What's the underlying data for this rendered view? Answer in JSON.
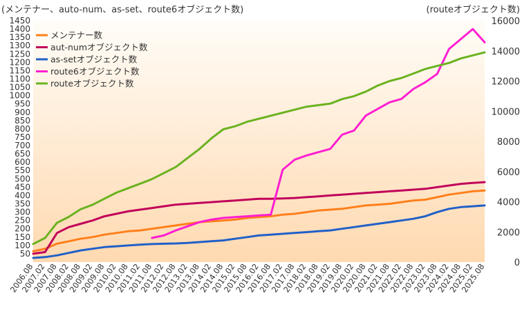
{
  "chart_data": {
    "type": "line",
    "ylabel_left": "(メンテナー、auto-num、as-set、route6オブジェクト数)",
    "ylabel_right": "(routeオブジェクト数)",
    "left_axis": {
      "ylim": [
        0,
        1450
      ],
      "ticks": [
        50,
        100,
        150,
        200,
        250,
        300,
        350,
        400,
        450,
        500,
        550,
        600,
        650,
        700,
        750,
        800,
        850,
        900,
        950,
        1000,
        1050,
        1100,
        1150,
        1200,
        1250,
        1300,
        1350,
        1400,
        1450
      ]
    },
    "right_axis": {
      "ylim": [
        0,
        16000
      ],
      "ticks": [
        0,
        2000,
        4000,
        6000,
        8000,
        10000,
        12000,
        14000,
        16000
      ]
    },
    "x_labels": [
      "2006.08",
      "2007.02",
      "2007.08",
      "2008.02",
      "2008.08",
      "2009.02",
      "2009.08",
      "2010.02",
      "2010.08",
      "2011.02",
      "2011.08",
      "2012.02",
      "2012.08",
      "2013.02",
      "2013.08",
      "2014.02",
      "2014.08",
      "2015.02",
      "2015.08",
      "2016.02",
      "2016.08",
      "2017.02",
      "2017.08",
      "2018.02",
      "2018.08",
      "2019.02",
      "2019.08",
      "2020.02",
      "2020.08",
      "2021.02",
      "2021.08",
      "2022.02",
      "2022.08",
      "2023.02",
      "2023.08",
      "2024.02",
      "2024.08",
      "2025.02",
      "2025.08"
    ],
    "grid": false,
    "legend_position": "top-left",
    "series": [
      {
        "name": "メンテナー数",
        "color": "#ff7f1a",
        "axis": "left",
        "values": [
          65,
          80,
          110,
          125,
          140,
          150,
          165,
          175,
          185,
          190,
          200,
          210,
          220,
          230,
          240,
          245,
          250,
          255,
          265,
          270,
          275,
          285,
          290,
          300,
          310,
          315,
          320,
          330,
          340,
          345,
          350,
          360,
          370,
          375,
          390,
          405,
          415,
          425,
          430
        ]
      },
      {
        "name": "aut-numオブジェクト数",
        "color": "#c0005a",
        "axis": "left",
        "values": [
          50,
          60,
          175,
          210,
          230,
          250,
          275,
          290,
          305,
          315,
          325,
          335,
          345,
          350,
          355,
          360,
          365,
          370,
          375,
          380,
          380,
          382,
          385,
          390,
          395,
          400,
          405,
          410,
          415,
          420,
          425,
          430,
          435,
          440,
          450,
          460,
          470,
          475,
          480
        ]
      },
      {
        "name": "as-setオブジェクト数",
        "color": "#1f5fc8",
        "axis": "left",
        "values": [
          25,
          30,
          40,
          55,
          70,
          80,
          90,
          95,
          100,
          105,
          108,
          110,
          112,
          115,
          120,
          125,
          130,
          140,
          150,
          160,
          165,
          170,
          175,
          180,
          185,
          190,
          200,
          210,
          220,
          230,
          240,
          250,
          260,
          275,
          300,
          320,
          330,
          335,
          340
        ]
      },
      {
        "name": "route6オブジェクト数",
        "color": "#ff1ed2",
        "axis": "left",
        "values": [
          null,
          null,
          null,
          null,
          null,
          null,
          null,
          null,
          null,
          null,
          145,
          160,
          190,
          215,
          240,
          255,
          265,
          270,
          275,
          280,
          285,
          555,
          615,
          640,
          660,
          680,
          765,
          790,
          880,
          920,
          960,
          980,
          1040,
          1080,
          1130,
          1280,
          1340,
          1400,
          1320
        ]
      },
      {
        "name": "routeオブジェクト数",
        "color": "#6ab21f",
        "axis": "right",
        "values": [
          1200,
          1600,
          2600,
          3000,
          3500,
          3800,
          4200,
          4600,
          4900,
          5200,
          5500,
          5900,
          6300,
          6900,
          7500,
          8200,
          8800,
          9000,
          9300,
          9500,
          9700,
          9900,
          10100,
          10300,
          10400,
          10500,
          10800,
          11000,
          11300,
          11700,
          12000,
          12200,
          12500,
          12800,
          13000,
          13200,
          13500,
          13700,
          13900
        ]
      }
    ]
  }
}
